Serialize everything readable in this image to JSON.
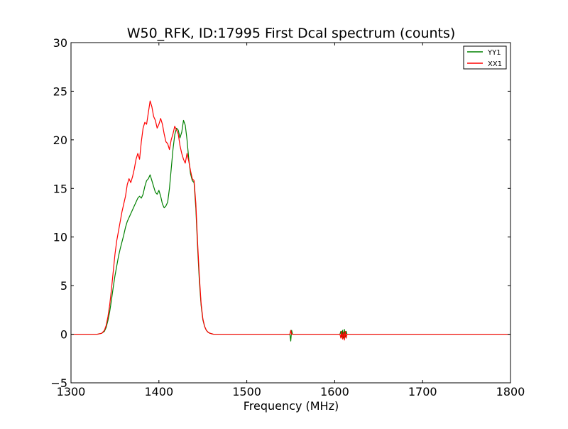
{
  "chart_data": {
    "type": "line",
    "title": "W50_RFK, ID:17995 First Dcal spectrum (counts)",
    "xlabel": "Frequency (MHz)",
    "ylabel": "",
    "xlim": [
      1300,
      1800
    ],
    "ylim": [
      -5,
      30
    ],
    "xticks": [
      1300,
      1400,
      1500,
      1600,
      1700,
      1800
    ],
    "yticks": [
      -5,
      0,
      5,
      10,
      15,
      20,
      25,
      30
    ],
    "grid": false,
    "legend_position": "top-right",
    "series": [
      {
        "name": "YY1",
        "color": "#008000",
        "x": [
          1300,
          1320,
          1330,
          1335,
          1338,
          1340,
          1342,
          1344,
          1346,
          1348,
          1350,
          1352,
          1354,
          1356,
          1358,
          1360,
          1362,
          1364,
          1366,
          1368,
          1370,
          1372,
          1374,
          1376,
          1378,
          1380,
          1382,
          1384,
          1386,
          1388,
          1390,
          1392,
          1394,
          1396,
          1398,
          1400,
          1402,
          1404,
          1406,
          1408,
          1410,
          1412,
          1414,
          1416,
          1418,
          1420,
          1422,
          1424,
          1426,
          1428,
          1430,
          1432,
          1434,
          1436,
          1438,
          1440,
          1442,
          1444,
          1446,
          1448,
          1450,
          1452,
          1454,
          1456,
          1458,
          1460,
          1462,
          1465,
          1470,
          1480,
          1500,
          1540,
          1549,
          1550,
          1551,
          1552,
          1560,
          1600,
          1606,
          1607,
          1608,
          1609,
          1610,
          1611,
          1612,
          1613,
          1614,
          1620,
          1700,
          1800
        ],
        "values": [
          0,
          0,
          0,
          0.1,
          0.3,
          0.7,
          1.4,
          2.3,
          3.5,
          4.8,
          6.0,
          7.0,
          8.0,
          8.8,
          9.5,
          10.2,
          11.0,
          11.6,
          12.0,
          12.4,
          12.8,
          13.2,
          13.6,
          14.0,
          14.2,
          14.0,
          14.4,
          15.2,
          15.8,
          16.0,
          16.4,
          15.8,
          15.2,
          14.6,
          14.4,
          14.8,
          14.2,
          13.4,
          13.0,
          13.2,
          13.6,
          15.0,
          17.0,
          19.0,
          20.5,
          21.2,
          21.0,
          20.2,
          20.8,
          22.0,
          21.5,
          20.0,
          18.0,
          16.5,
          15.8,
          15.6,
          13.0,
          9.0,
          5.5,
          3.0,
          1.5,
          0.8,
          0.4,
          0.2,
          0.1,
          0.05,
          0,
          0,
          0,
          0,
          0,
          0,
          0,
          -0.7,
          0.4,
          0,
          0,
          0,
          0,
          0.3,
          -0.3,
          0.4,
          -0.4,
          0.5,
          -0.3,
          0.3,
          0,
          0,
          0,
          0
        ]
      },
      {
        "name": "XX1",
        "color": "#ff0000",
        "x": [
          1300,
          1320,
          1330,
          1335,
          1338,
          1340,
          1342,
          1344,
          1346,
          1348,
          1350,
          1352,
          1354,
          1356,
          1358,
          1360,
          1362,
          1364,
          1366,
          1368,
          1370,
          1372,
          1374,
          1376,
          1378,
          1380,
          1382,
          1384,
          1386,
          1388,
          1390,
          1392,
          1394,
          1396,
          1398,
          1400,
          1402,
          1404,
          1406,
          1408,
          1410,
          1412,
          1414,
          1416,
          1418,
          1420,
          1422,
          1424,
          1426,
          1428,
          1430,
          1432,
          1434,
          1436,
          1438,
          1440,
          1442,
          1444,
          1446,
          1448,
          1450,
          1452,
          1454,
          1456,
          1458,
          1460,
          1462,
          1465,
          1470,
          1480,
          1500,
          1549,
          1550,
          1551,
          1560,
          1600,
          1606,
          1607,
          1608,
          1609,
          1610,
          1611,
          1612,
          1613,
          1614,
          1620,
          1700,
          1800
        ],
        "values": [
          0,
          0,
          0,
          0.1,
          0.4,
          0.9,
          1.8,
          3.0,
          4.6,
          6.4,
          8.2,
          9.6,
          10.6,
          11.6,
          12.6,
          13.4,
          14.2,
          15.4,
          16.0,
          15.6,
          16.2,
          17.0,
          18.0,
          18.6,
          18.0,
          19.8,
          21.2,
          21.8,
          21.6,
          22.8,
          24.0,
          23.4,
          22.4,
          22.0,
          21.2,
          21.6,
          22.2,
          21.6,
          20.6,
          19.8,
          19.6,
          19.0,
          20.0,
          20.6,
          21.4,
          21.0,
          20.6,
          19.4,
          18.6,
          18.0,
          17.6,
          18.6,
          17.8,
          16.8,
          16.0,
          15.8,
          13.5,
          9.5,
          6.0,
          3.2,
          1.6,
          0.8,
          0.4,
          0.2,
          0.1,
          0.05,
          0,
          0,
          0,
          0,
          0,
          0,
          0.4,
          0,
          0,
          0,
          0,
          -0.4,
          0.3,
          -0.5,
          0.2,
          -0.6,
          0.3,
          -0.4,
          0,
          0,
          0,
          0
        ]
      }
    ]
  }
}
